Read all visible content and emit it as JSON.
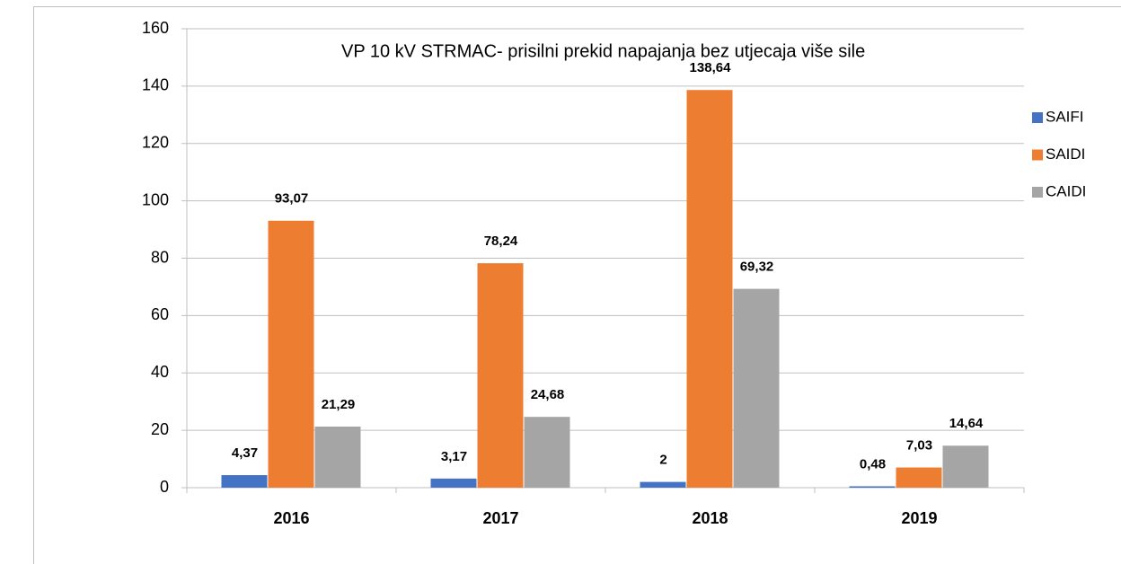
{
  "chart_data": {
    "type": "bar",
    "title": "VP 10 kV STRMAC- prisilni prekid napajanja bez utjecaja više sile",
    "categories": [
      "2016",
      "2017",
      "2018",
      "2019"
    ],
    "series": [
      {
        "name": "SAIFI",
        "color": "#4472c4",
        "values": [
          4.37,
          3.17,
          2,
          0.48
        ],
        "value_labels": [
          "4,37",
          "3,17",
          "2",
          "0,48"
        ]
      },
      {
        "name": "SAIDI",
        "color": "#ed7d31",
        "values": [
          93.07,
          78.24,
          138.64,
          7.03
        ],
        "value_labels": [
          "93,07",
          "78,24",
          "138,64",
          "7,03"
        ]
      },
      {
        "name": "CAIDI",
        "color": "#a5a5a5",
        "values": [
          21.29,
          24.68,
          69.32,
          14.64
        ],
        "value_labels": [
          "21,29",
          "24,68",
          "69,32",
          "14,64"
        ]
      }
    ],
    "ylim": [
      0,
      160
    ],
    "yticks": [
      0,
      20,
      40,
      60,
      80,
      100,
      120,
      140,
      160
    ],
    "grid": true,
    "legend": "right"
  }
}
